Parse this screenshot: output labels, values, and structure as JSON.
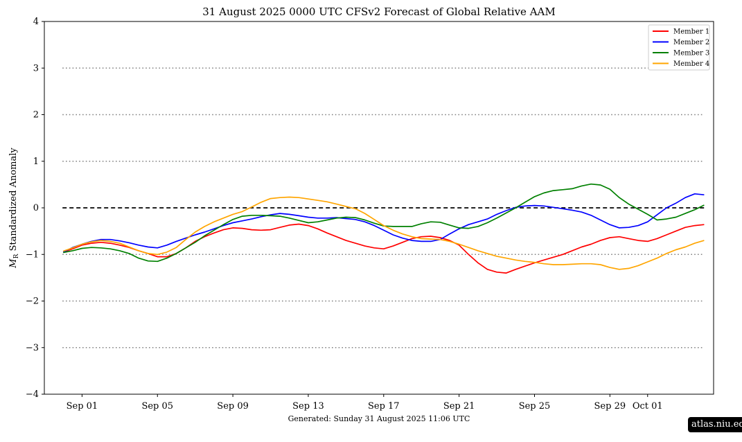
{
  "chart_data": {
    "type": "line",
    "title": "31  August  2025 0000 UTC   CFSv2 Forecast of Global Relative AAM",
    "ylabel_symbol": "M",
    "ylabel_subscript": "R",
    "ylabel_text": " Standardized Anomaly",
    "ylim": [
      -4,
      4
    ],
    "yticks": [
      -4,
      -3,
      -2,
      -1,
      0,
      1,
      2,
      3,
      4
    ],
    "ytick_labels": [
      "−4",
      "−3",
      "−2",
      "−1",
      "0",
      "1",
      "2",
      "3",
      "4"
    ],
    "xlim": [
      "2025-08-30T00",
      "2025-10-04T12"
    ],
    "xticks": [
      "2025-09-01T00",
      "2025-09-05T00",
      "2025-09-09T00",
      "2025-09-13T00",
      "2025-09-17T00",
      "2025-09-21T00",
      "2025-09-25T00",
      "2025-09-29T00",
      "2025-10-01T00"
    ],
    "xtick_labels": [
      "Sep 01",
      "Sep 05",
      "Sep 09",
      "Sep 13",
      "Sep 17",
      "Sep 21",
      "Sep 25",
      "Sep 29",
      "Oct 01"
    ],
    "reference_lines": [
      {
        "y": 0,
        "style": "dashed",
        "color": "#000000"
      },
      {
        "y": 3,
        "style": "dotted",
        "color": "#808080"
      },
      {
        "y": 2,
        "style": "dotted",
        "color": "#808080"
      },
      {
        "y": 1,
        "style": "dotted",
        "color": "#808080"
      },
      {
        "y": -1,
        "style": "dotted",
        "color": "#808080"
      },
      {
        "y": -2,
        "style": "dotted",
        "color": "#808080"
      },
      {
        "y": -3,
        "style": "dotted",
        "color": "#808080"
      }
    ],
    "legend_position": "top-right",
    "x": [
      "2025-08-31T00",
      "2025-08-31T12",
      "2025-09-01T00",
      "2025-09-01T12",
      "2025-09-02T00",
      "2025-09-02T12",
      "2025-09-03T00",
      "2025-09-03T12",
      "2025-09-04T00",
      "2025-09-04T12",
      "2025-09-05T00",
      "2025-09-05T12",
      "2025-09-06T00",
      "2025-09-06T12",
      "2025-09-07T00",
      "2025-09-07T12",
      "2025-09-08T00",
      "2025-09-08T12",
      "2025-09-09T00",
      "2025-09-09T12",
      "2025-09-10T00",
      "2025-09-10T12",
      "2025-09-11T00",
      "2025-09-11T12",
      "2025-09-12T00",
      "2025-09-12T12",
      "2025-09-13T00",
      "2025-09-13T12",
      "2025-09-14T00",
      "2025-09-14T12",
      "2025-09-15T00",
      "2025-09-15T12",
      "2025-09-16T00",
      "2025-09-16T12",
      "2025-09-17T00",
      "2025-09-17T12",
      "2025-09-18T00",
      "2025-09-18T12",
      "2025-09-19T00",
      "2025-09-19T12",
      "2025-09-20T00",
      "2025-09-20T12",
      "2025-09-21T00",
      "2025-09-21T12",
      "2025-09-22T00",
      "2025-09-22T12",
      "2025-09-23T00",
      "2025-09-23T12",
      "2025-09-24T00",
      "2025-09-24T12",
      "2025-09-25T00",
      "2025-09-25T12",
      "2025-09-26T00",
      "2025-09-26T12",
      "2025-09-27T00",
      "2025-09-27T12",
      "2025-09-28T00",
      "2025-09-28T12",
      "2025-09-29T00",
      "2025-09-29T12",
      "2025-09-30T00",
      "2025-09-30T12",
      "2025-10-01T00",
      "2025-10-01T12",
      "2025-10-02T00",
      "2025-10-02T12",
      "2025-10-03T00",
      "2025-10-03T12",
      "2025-10-04T00"
    ],
    "series": [
      {
        "name": "Member 1",
        "color": "#ff0000",
        "values": [
          -0.95,
          -0.88,
          -0.8,
          -0.76,
          -0.74,
          -0.76,
          -0.8,
          -0.85,
          -0.92,
          -0.98,
          -1.05,
          -1.05,
          -0.98,
          -0.86,
          -0.72,
          -0.62,
          -0.54,
          -0.47,
          -0.43,
          -0.44,
          -0.47,
          -0.48,
          -0.47,
          -0.42,
          -0.37,
          -0.35,
          -0.38,
          -0.45,
          -0.54,
          -0.62,
          -0.7,
          -0.76,
          -0.82,
          -0.86,
          -0.88,
          -0.82,
          -0.74,
          -0.66,
          -0.62,
          -0.61,
          -0.64,
          -0.7,
          -0.8,
          -1.0,
          -1.18,
          -1.32,
          -1.38,
          -1.4,
          -1.32,
          -1.25,
          -1.18,
          -1.12,
          -1.06,
          -1.0,
          -0.92,
          -0.84,
          -0.78,
          -0.7,
          -0.64,
          -0.62,
          -0.66,
          -0.7,
          -0.72,
          -0.66,
          -0.58,
          -0.5,
          -0.42,
          -0.38,
          -0.36
        ]
      },
      {
        "name": "Member 2",
        "color": "#0000ff",
        "values": [
          -0.95,
          -0.85,
          -0.78,
          -0.72,
          -0.68,
          -0.68,
          -0.71,
          -0.75,
          -0.8,
          -0.84,
          -0.86,
          -0.8,
          -0.72,
          -0.65,
          -0.58,
          -0.52,
          -0.45,
          -0.38,
          -0.32,
          -0.28,
          -0.24,
          -0.19,
          -0.15,
          -0.12,
          -0.14,
          -0.17,
          -0.2,
          -0.22,
          -0.22,
          -0.21,
          -0.23,
          -0.25,
          -0.3,
          -0.38,
          -0.48,
          -0.58,
          -0.65,
          -0.7,
          -0.72,
          -0.72,
          -0.68,
          -0.56,
          -0.45,
          -0.36,
          -0.3,
          -0.24,
          -0.14,
          -0.06,
          0.01,
          0.04,
          0.05,
          0.04,
          0.01,
          -0.02,
          -0.05,
          -0.09,
          -0.16,
          -0.26,
          -0.36,
          -0.43,
          -0.42,
          -0.38,
          -0.3,
          -0.15,
          0.0,
          0.1,
          0.22,
          0.3,
          0.28
        ]
      },
      {
        "name": "Member 3",
        "color": "#008000",
        "values": [
          -0.96,
          -0.92,
          -0.87,
          -0.85,
          -0.86,
          -0.88,
          -0.92,
          -0.98,
          -1.08,
          -1.14,
          -1.15,
          -1.08,
          -0.98,
          -0.86,
          -0.74,
          -0.6,
          -0.48,
          -0.36,
          -0.25,
          -0.18,
          -0.16,
          -0.16,
          -0.17,
          -0.18,
          -0.22,
          -0.27,
          -0.32,
          -0.3,
          -0.26,
          -0.22,
          -0.2,
          -0.21,
          -0.26,
          -0.33,
          -0.39,
          -0.4,
          -0.4,
          -0.4,
          -0.34,
          -0.3,
          -0.31,
          -0.37,
          -0.43,
          -0.44,
          -0.4,
          -0.32,
          -0.22,
          -0.11,
          0.0,
          0.12,
          0.24,
          0.32,
          0.37,
          0.39,
          0.41,
          0.47,
          0.51,
          0.49,
          0.4,
          0.22,
          0.08,
          -0.03,
          -0.14,
          -0.26,
          -0.24,
          -0.2,
          -0.12,
          -0.04,
          0.06
        ]
      },
      {
        "name": "Member 4",
        "color": "#ffa500",
        "values": [
          -0.93,
          -0.86,
          -0.78,
          -0.73,
          -0.7,
          -0.72,
          -0.76,
          -0.84,
          -0.92,
          -0.98,
          -1.0,
          -0.95,
          -0.85,
          -0.68,
          -0.52,
          -0.4,
          -0.3,
          -0.22,
          -0.14,
          -0.08,
          0.02,
          0.12,
          0.2,
          0.22,
          0.23,
          0.22,
          0.19,
          0.16,
          0.13,
          0.08,
          0.03,
          -0.02,
          -0.12,
          -0.25,
          -0.38,
          -0.48,
          -0.56,
          -0.62,
          -0.66,
          -0.67,
          -0.68,
          -0.72,
          -0.78,
          -0.85,
          -0.92,
          -0.98,
          -1.04,
          -1.08,
          -1.12,
          -1.15,
          -1.17,
          -1.2,
          -1.22,
          -1.22,
          -1.21,
          -1.2,
          -1.2,
          -1.22,
          -1.28,
          -1.32,
          -1.3,
          -1.24,
          -1.16,
          -1.08,
          -0.98,
          -0.9,
          -0.84,
          -0.76,
          -0.7
        ]
      }
    ]
  },
  "footer": {
    "generated": "Generated: Sunday  31  August  2025  11:06 UTC",
    "watermark": "atlas.niu.edu"
  }
}
